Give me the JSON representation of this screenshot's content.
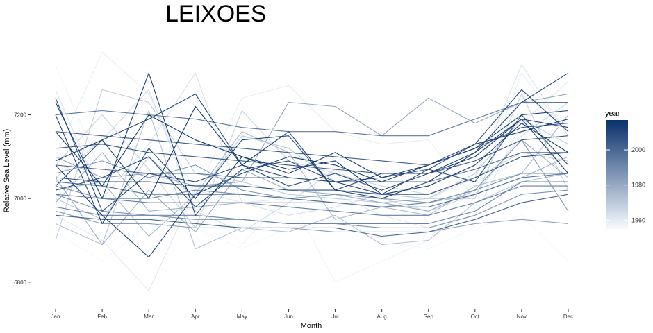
{
  "chart_data": {
    "type": "line",
    "title": "LEIXOES",
    "xlabel": "Month",
    "ylabel": "Relative Sea Level (mm)",
    "categories": [
      "Jan",
      "Feb",
      "Mar",
      "Apr",
      "May",
      "Jun",
      "Jul",
      "Aug",
      "Sep",
      "Oct",
      "Nov",
      "Dec"
    ],
    "ylim": [
      6745,
      7375
    ],
    "yticks": [
      6800,
      7000,
      7200
    ],
    "grid": false,
    "legend": {
      "title": "year",
      "placement": "right",
      "type": "colorbar",
      "range": [
        1955,
        2017
      ],
      "ticks": [
        1960,
        1980,
        2000
      ],
      "color_low": "#f7fbff",
      "color_high": "#08306b"
    },
    "series": [
      {
        "year": 1956,
        "values": [
          6920,
          6850,
          6940,
          6930,
          6880,
          6930,
          6950,
          6900,
          6880,
          6930,
          6960,
          6850
        ]
      },
      {
        "year": 1957,
        "values": [
          7320,
          7060,
          7250,
          7000,
          6890,
          7010,
          6800,
          6850,
          6900,
          7040,
          7090,
          7130
        ]
      },
      {
        "year": 1959,
        "values": [
          7100,
          7350,
          7250,
          7010,
          7240,
          7270,
          7160,
          7130,
          7140,
          7000,
          7300,
          7150
        ]
      },
      {
        "year": 1961,
        "values": [
          6960,
          6900,
          6780,
          7020,
          6990,
          7000,
          7010,
          6960,
          6930,
          6960,
          7180,
          7280
        ]
      },
      {
        "year": 1963,
        "values": [
          7260,
          7000,
          7130,
          7300,
          6990,
          6960,
          6980,
          7010,
          7000,
          7050,
          7320,
          7150
        ]
      },
      {
        "year": 1965,
        "values": [
          7050,
          7140,
          7260,
          6970,
          6920,
          6990,
          7070,
          7000,
          6970,
          7010,
          7150,
          7230
        ]
      },
      {
        "year": 1967,
        "values": [
          7080,
          7200,
          7070,
          6930,
          7210,
          7090,
          7060,
          7030,
          7010,
          7050,
          7110,
          7090
        ]
      },
      {
        "year": 1969,
        "values": [
          6900,
          7260,
          7230,
          7060,
          7040,
          7010,
          7000,
          6990,
          7000,
          7000,
          7250,
          7020
        ]
      },
      {
        "year": 1971,
        "values": [
          7000,
          6950,
          7100,
          7000,
          7150,
          7120,
          7040,
          7010,
          7000,
          7060,
          7190,
          7130
        ]
      },
      {
        "year": 1973,
        "values": [
          6940,
          6890,
          7210,
          6880,
          6930,
          6920,
          6960,
          6890,
          6900,
          6990,
          7040,
          7060
        ]
      },
      {
        "year": 1975,
        "values": [
          7020,
          7040,
          6910,
          7010,
          7160,
          7110,
          6950,
          6980,
          6960,
          7030,
          7060,
          7200
        ]
      },
      {
        "year": 1977,
        "values": [
          6990,
          7110,
          6970,
          6980,
          6990,
          6990,
          6990,
          6980,
          6990,
          7010,
          7050,
          7100
        ]
      },
      {
        "year": 1979,
        "values": [
          7050,
          6890,
          7020,
          6920,
          7070,
          7020,
          7010,
          6990,
          6970,
          7020,
          7140,
          7050
        ]
      },
      {
        "year": 1981,
        "values": [
          7100,
          7050,
          7060,
          7030,
          7040,
          7230,
          7220,
          7150,
          7240,
          7180,
          7230,
          7250
        ]
      },
      {
        "year": 1983,
        "values": [
          6970,
          6940,
          6940,
          6930,
          6930,
          6930,
          6920,
          6920,
          6920,
          6940,
          6950,
          6940
        ]
      },
      {
        "year": 1985,
        "values": [
          7060,
          7090,
          7050,
          7080,
          7020,
          7000,
          7010,
          7000,
          6990,
          7020,
          7140,
          6970
        ]
      },
      {
        "year": 1987,
        "values": [
          7010,
          6970,
          6960,
          6950,
          6950,
          6940,
          6940,
          6930,
          6930,
          6960,
          7010,
          7020
        ]
      },
      {
        "year": 1989,
        "values": [
          7030,
          7000,
          7000,
          7020,
          7010,
          7000,
          6990,
          6980,
          6990,
          7020,
          7060,
          7060
        ]
      },
      {
        "year": 1991,
        "values": [
          6980,
          6960,
          6960,
          6960,
          6950,
          6940,
          6940,
          6940,
          6940,
          6970,
          7040,
          7040
        ]
      },
      {
        "year": 1993,
        "values": [
          7010,
          7000,
          6990,
          6990,
          6990,
          6980,
          6970,
          6960,
          6960,
          6990,
          7030,
          7030
        ]
      },
      {
        "year": 1995,
        "values": [
          7200,
          7210,
          7200,
          7190,
          7170,
          7160,
          7160,
          7150,
          7150,
          7190,
          7230,
          7230
        ]
      },
      {
        "year": 1997,
        "values": [
          7040,
          7030,
          7010,
          7010,
          7010,
          7000,
          6990,
          6980,
          6980,
          7010,
          7050,
          7060
        ]
      },
      {
        "year": 1999,
        "values": [
          7080,
          7070,
          7060,
          7060,
          7050,
          7050,
          7040,
          7040,
          7040,
          7070,
          7110,
          7110
        ]
      },
      {
        "year": 2001,
        "values": [
          6960,
          6950,
          6950,
          6940,
          6930,
          6930,
          6930,
          6910,
          6920,
          6950,
          6990,
          7010
        ]
      },
      {
        "year": 2003,
        "values": [
          7160,
          7150,
          7140,
          7130,
          7120,
          7110,
          7100,
          7090,
          7080,
          7120,
          7170,
          7180
        ]
      },
      {
        "year": 2005,
        "values": [
          7120,
          7130,
          7110,
          7100,
          7090,
          7080,
          7070,
          7060,
          7060,
          7090,
          7140,
          7150
        ]
      },
      {
        "year": 2007,
        "values": [
          7050,
          7040,
          7040,
          7030,
          7030,
          7020,
          7020,
          7010,
          7010,
          7050,
          7100,
          7110
        ]
      },
      {
        "year": 2008,
        "values": [
          7240,
          6970,
          7060,
          7040,
          7080,
          7050,
          7040,
          7050,
          7070,
          7130,
          7260,
          7160
        ]
      },
      {
        "year": 2009,
        "values": [
          7020,
          7050,
          7100,
          6980,
          7070,
          7090,
          7040,
          7010,
          7070,
          7040,
          7200,
          7080
        ]
      },
      {
        "year": 2010,
        "values": [
          7030,
          7140,
          7190,
          7250,
          7080,
          7030,
          7060,
          7020,
          7060,
          7110,
          7230,
          7300
        ]
      },
      {
        "year": 2011,
        "values": [
          7200,
          6940,
          7120,
          7000,
          7140,
          7150,
          7020,
          7000,
          7040,
          7110,
          7190,
          7170
        ]
      },
      {
        "year": 2012,
        "values": [
          7080,
          6960,
          6860,
          7010,
          7060,
          7100,
          7080,
          7040,
          7080,
          7120,
          7200,
          7210
        ]
      },
      {
        "year": 2013,
        "values": [
          7230,
          7000,
          7300,
          6960,
          7100,
          7060,
          7110,
          7050,
          7080,
          7130,
          7160,
          7190
        ]
      },
      {
        "year": 2014,
        "values": [
          7090,
          7140,
          7000,
          7220,
          7080,
          7160,
          7020,
          7060,
          7060,
          7100,
          7190,
          7060
        ]
      },
      {
        "year": 2015,
        "values": [
          7160,
          7030,
          7200,
          7140,
          7100,
          7070,
          7090,
          7010,
          7030,
          7080,
          7180,
          7110
        ]
      }
    ]
  }
}
